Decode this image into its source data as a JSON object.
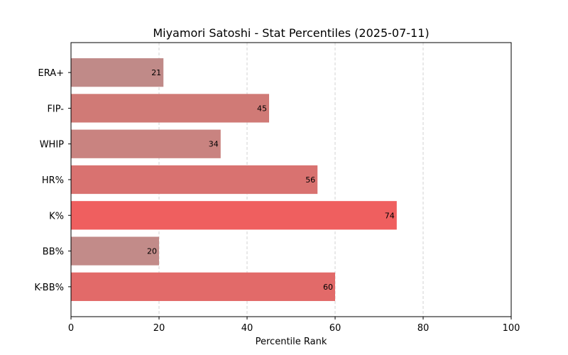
{
  "chart_data": {
    "type": "bar",
    "orientation": "horizontal",
    "title": "Miyamori Satoshi - Stat Percentiles (2025-07-11)",
    "xlabel": "Percentile Rank",
    "ylabel": "",
    "xlim": [
      0,
      100
    ],
    "xticks": [
      0,
      20,
      40,
      60,
      80,
      100
    ],
    "grid": "x-dashed",
    "categories": [
      "ERA+",
      "FIP-",
      "WHIP",
      "HR%",
      "K%",
      "BB%",
      "K-BB%"
    ],
    "values": [
      21,
      45,
      34,
      56,
      74,
      20,
      60
    ],
    "colors": [
      "#c08a88",
      "#d07a76",
      "#c98380",
      "#d97270",
      "#ef5f5f",
      "#c28b89",
      "#e26a69"
    ],
    "value_labels": [
      "21",
      "45",
      "34",
      "56",
      "74",
      "20",
      "60"
    ]
  }
}
